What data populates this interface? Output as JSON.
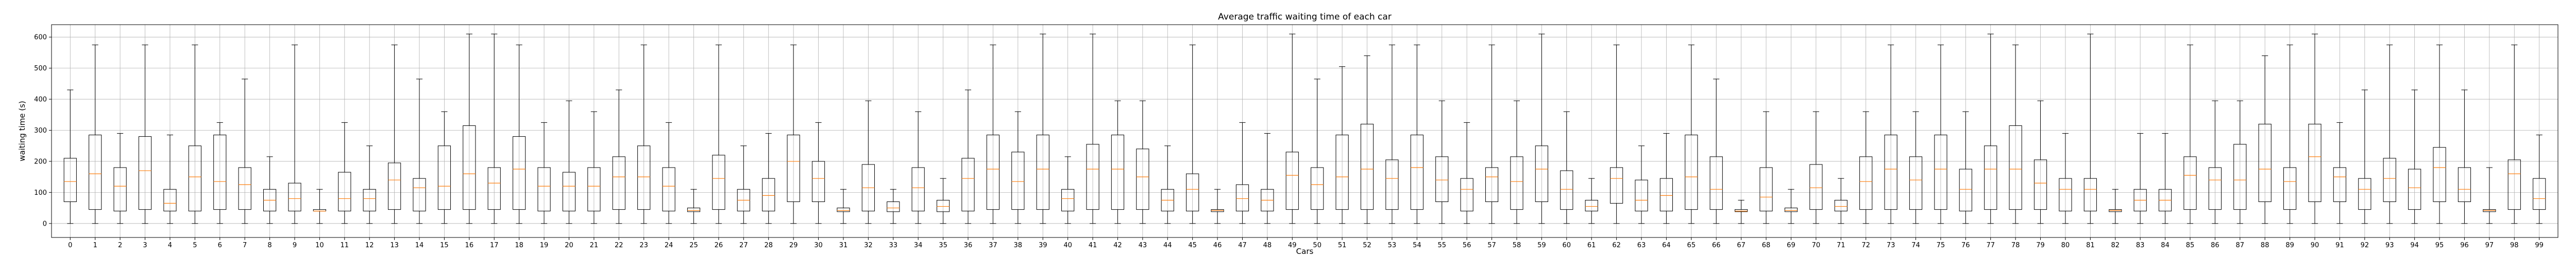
{
  "chart_data": {
    "type": "boxplot",
    "title": "Average traffic waiting time of each car",
    "xlabel": "Cars",
    "ylabel": "waiting time (s)",
    "ylim": [
      -45,
      640
    ],
    "yticks": [
      0,
      100,
      200,
      300,
      400,
      500,
      600
    ],
    "grid": true,
    "colors": {
      "box": "#000000",
      "median": "#ff7f0e",
      "grid": "#b0b0b0"
    },
    "categories": [
      "0",
      "1",
      "2",
      "3",
      "4",
      "5",
      "6",
      "7",
      "8",
      "9",
      "10",
      "11",
      "12",
      "13",
      "14",
      "15",
      "16",
      "17",
      "18",
      "19",
      "20",
      "21",
      "22",
      "23",
      "24",
      "25",
      "26",
      "27",
      "28",
      "29",
      "30",
      "31",
      "32",
      "33",
      "34",
      "35",
      "36",
      "37",
      "38",
      "39",
      "40",
      "41",
      "42",
      "43",
      "44",
      "45",
      "46",
      "47",
      "48",
      "49",
      "50",
      "51",
      "52",
      "53",
      "54",
      "55",
      "56",
      "57",
      "58",
      "59",
      "60",
      "61",
      "62",
      "63",
      "64",
      "65",
      "66",
      "67",
      "68",
      "69",
      "70",
      "71",
      "72",
      "73",
      "74",
      "75",
      "76",
      "77",
      "78",
      "79",
      "80",
      "81",
      "82",
      "83",
      "84",
      "85",
      "86",
      "87",
      "88",
      "89",
      "90",
      "91",
      "92",
      "93",
      "94",
      "95",
      "96",
      "97",
      "98",
      "99"
    ],
    "boxes": [
      {
        "whislo": 0,
        "q1": 70,
        "med": 135,
        "q3": 210,
        "whishi": 430
      },
      {
        "whislo": 0,
        "q1": 45,
        "med": 160,
        "q3": 285,
        "whishi": 575
      },
      {
        "whislo": 0,
        "q1": 40,
        "med": 120,
        "q3": 180,
        "whishi": 290
      },
      {
        "whislo": 0,
        "q1": 45,
        "med": 170,
        "q3": 280,
        "whishi": 575
      },
      {
        "whislo": 0,
        "q1": 40,
        "med": 65,
        "q3": 110,
        "whishi": 285
      },
      {
        "whislo": 0,
        "q1": 40,
        "med": 150,
        "q3": 250,
        "whishi": 575
      },
      {
        "whislo": 0,
        "q1": 45,
        "med": 135,
        "q3": 285,
        "whishi": 325
      },
      {
        "whislo": 0,
        "q1": 45,
        "med": 125,
        "q3": 180,
        "whishi": 465
      },
      {
        "whislo": 0,
        "q1": 40,
        "med": 75,
        "q3": 110,
        "whishi": 215
      },
      {
        "whislo": 0,
        "q1": 40,
        "med": 80,
        "q3": 130,
        "whishi": 575
      },
      {
        "whislo": 0,
        "q1": 40,
        "med": 40,
        "q3": 45,
        "whishi": 110
      },
      {
        "whislo": 0,
        "q1": 40,
        "med": 80,
        "q3": 165,
        "whishi": 325
      },
      {
        "whislo": 0,
        "q1": 40,
        "med": 80,
        "q3": 110,
        "whishi": 250
      },
      {
        "whislo": 0,
        "q1": 45,
        "med": 140,
        "q3": 195,
        "whishi": 575
      },
      {
        "whislo": 0,
        "q1": 40,
        "med": 115,
        "q3": 145,
        "whishi": 465
      },
      {
        "whislo": 0,
        "q1": 45,
        "med": 120,
        "q3": 250,
        "whishi": 360
      },
      {
        "whislo": 0,
        "q1": 45,
        "med": 160,
        "q3": 315,
        "whishi": 610
      },
      {
        "whislo": 0,
        "q1": 45,
        "med": 130,
        "q3": 180,
        "whishi": 610
      },
      {
        "whislo": 0,
        "q1": 45,
        "med": 175,
        "q3": 280,
        "whishi": 575
      },
      {
        "whislo": 0,
        "q1": 40,
        "med": 120,
        "q3": 180,
        "whishi": 325
      },
      {
        "whislo": 0,
        "q1": 40,
        "med": 120,
        "q3": 165,
        "whishi": 395
      },
      {
        "whislo": 0,
        "q1": 40,
        "med": 120,
        "q3": 180,
        "whishi": 360
      },
      {
        "whislo": 0,
        "q1": 45,
        "med": 150,
        "q3": 215,
        "whishi": 430
      },
      {
        "whislo": 0,
        "q1": 45,
        "med": 150,
        "q3": 250,
        "whishi": 575
      },
      {
        "whislo": 0,
        "q1": 40,
        "med": 120,
        "q3": 180,
        "whishi": 325
      },
      {
        "whislo": 0,
        "q1": 38,
        "med": 42,
        "q3": 50,
        "whishi": 110
      },
      {
        "whislo": 0,
        "q1": 45,
        "med": 145,
        "q3": 220,
        "whishi": 575
      },
      {
        "whislo": 0,
        "q1": 40,
        "med": 75,
        "q3": 110,
        "whishi": 250
      },
      {
        "whislo": 0,
        "q1": 40,
        "med": 90,
        "q3": 145,
        "whishi": 290
      },
      {
        "whislo": 0,
        "q1": 70,
        "med": 200,
        "q3": 285,
        "whishi": 575
      },
      {
        "whislo": 0,
        "q1": 70,
        "med": 145,
        "q3": 200,
        "whishi": 325
      },
      {
        "whislo": 0,
        "q1": 38,
        "med": 42,
        "q3": 50,
        "whishi": 110
      },
      {
        "whislo": 0,
        "q1": 40,
        "med": 115,
        "q3": 190,
        "whishi": 395
      },
      {
        "whislo": 0,
        "q1": 38,
        "med": 50,
        "q3": 70,
        "whishi": 110
      },
      {
        "whislo": 0,
        "q1": 40,
        "med": 115,
        "q3": 180,
        "whishi": 360
      },
      {
        "whislo": 0,
        "q1": 38,
        "med": 55,
        "q3": 75,
        "whishi": 145
      },
      {
        "whislo": 0,
        "q1": 40,
        "med": 145,
        "q3": 210,
        "whishi": 430
      },
      {
        "whislo": 0,
        "q1": 45,
        "med": 175,
        "q3": 285,
        "whishi": 575
      },
      {
        "whislo": 0,
        "q1": 45,
        "med": 135,
        "q3": 230,
        "whishi": 360
      },
      {
        "whislo": 0,
        "q1": 45,
        "med": 175,
        "q3": 285,
        "whishi": 610
      },
      {
        "whislo": 0,
        "q1": 40,
        "med": 80,
        "q3": 110,
        "whishi": 215
      },
      {
        "whislo": 0,
        "q1": 45,
        "med": 175,
        "q3": 255,
        "whishi": 610
      },
      {
        "whislo": 0,
        "q1": 45,
        "med": 175,
        "q3": 285,
        "whishi": 395
      },
      {
        "whislo": 0,
        "q1": 45,
        "med": 150,
        "q3": 240,
        "whishi": 395
      },
      {
        "whislo": 0,
        "q1": 40,
        "med": 75,
        "q3": 110,
        "whishi": 250
      },
      {
        "whislo": 0,
        "q1": 40,
        "med": 110,
        "q3": 160,
        "whishi": 575
      },
      {
        "whislo": 0,
        "q1": 38,
        "med": 42,
        "q3": 45,
        "whishi": 110
      },
      {
        "whislo": 0,
        "q1": 40,
        "med": 80,
        "q3": 125,
        "whishi": 325
      },
      {
        "whislo": 0,
        "q1": 40,
        "med": 75,
        "q3": 110,
        "whishi": 290
      },
      {
        "whislo": 0,
        "q1": 45,
        "med": 155,
        "q3": 230,
        "whishi": 610
      },
      {
        "whislo": 0,
        "q1": 45,
        "med": 125,
        "q3": 180,
        "whishi": 465
      },
      {
        "whislo": 0,
        "q1": 45,
        "med": 150,
        "q3": 285,
        "whishi": 505
      },
      {
        "whislo": 0,
        "q1": 45,
        "med": 175,
        "q3": 320,
        "whishi": 540
      },
      {
        "whislo": 0,
        "q1": 45,
        "med": 145,
        "q3": 205,
        "whishi": 575
      },
      {
        "whislo": 0,
        "q1": 45,
        "med": 180,
        "q3": 285,
        "whishi": 575
      },
      {
        "whislo": 0,
        "q1": 70,
        "med": 140,
        "q3": 215,
        "whishi": 395
      },
      {
        "whislo": 0,
        "q1": 40,
        "med": 110,
        "q3": 145,
        "whishi": 325
      },
      {
        "whislo": 0,
        "q1": 70,
        "med": 150,
        "q3": 180,
        "whishi": 575
      },
      {
        "whislo": 0,
        "q1": 45,
        "med": 135,
        "q3": 215,
        "whishi": 395
      },
      {
        "whislo": 0,
        "q1": 70,
        "med": 175,
        "q3": 250,
        "whishi": 610
      },
      {
        "whislo": 0,
        "q1": 45,
        "med": 110,
        "q3": 170,
        "whishi": 360
      },
      {
        "whislo": 0,
        "q1": 40,
        "med": 55,
        "q3": 75,
        "whishi": 145
      },
      {
        "whislo": 0,
        "q1": 65,
        "med": 145,
        "q3": 180,
        "whishi": 575
      },
      {
        "whislo": 0,
        "q1": 40,
        "med": 75,
        "q3": 140,
        "whishi": 250
      },
      {
        "whislo": 0,
        "q1": 40,
        "med": 90,
        "q3": 145,
        "whishi": 290
      },
      {
        "whislo": 0,
        "q1": 45,
        "med": 150,
        "q3": 285,
        "whishi": 575
      },
      {
        "whislo": 0,
        "q1": 45,
        "med": 110,
        "q3": 215,
        "whishi": 465
      },
      {
        "whislo": 0,
        "q1": 38,
        "med": 40,
        "q3": 45,
        "whishi": 75
      },
      {
        "whislo": 0,
        "q1": 40,
        "med": 85,
        "q3": 180,
        "whishi": 360
      },
      {
        "whislo": 0,
        "q1": 38,
        "med": 42,
        "q3": 50,
        "whishi": 110
      },
      {
        "whislo": 0,
        "q1": 45,
        "med": 115,
        "q3": 190,
        "whishi": 360
      },
      {
        "whislo": 0,
        "q1": 40,
        "med": 55,
        "q3": 75,
        "whishi": 145
      },
      {
        "whislo": 0,
        "q1": 45,
        "med": 135,
        "q3": 215,
        "whishi": 360
      },
      {
        "whislo": 0,
        "q1": 45,
        "med": 175,
        "q3": 285,
        "whishi": 575
      },
      {
        "whislo": 0,
        "q1": 45,
        "med": 140,
        "q3": 215,
        "whishi": 360
      },
      {
        "whislo": 0,
        "q1": 45,
        "med": 175,
        "q3": 285,
        "whishi": 575
      },
      {
        "whislo": 0,
        "q1": 40,
        "med": 110,
        "q3": 175,
        "whishi": 360
      },
      {
        "whislo": 0,
        "q1": 45,
        "med": 175,
        "q3": 250,
        "whishi": 610
      },
      {
        "whislo": 0,
        "q1": 45,
        "med": 175,
        "q3": 315,
        "whishi": 575
      },
      {
        "whislo": 0,
        "q1": 45,
        "med": 130,
        "q3": 205,
        "whishi": 395
      },
      {
        "whislo": 0,
        "q1": 40,
        "med": 110,
        "q3": 145,
        "whishi": 290
      },
      {
        "whislo": 0,
        "q1": 40,
        "med": 110,
        "q3": 145,
        "whishi": 610
      },
      {
        "whislo": 0,
        "q1": 38,
        "med": 42,
        "q3": 45,
        "whishi": 110
      },
      {
        "whislo": 0,
        "q1": 40,
        "med": 75,
        "q3": 110,
        "whishi": 290
      },
      {
        "whislo": 0,
        "q1": 40,
        "med": 75,
        "q3": 110,
        "whishi": 290
      },
      {
        "whislo": 0,
        "q1": 45,
        "med": 155,
        "q3": 215,
        "whishi": 575
      },
      {
        "whislo": 0,
        "q1": 45,
        "med": 140,
        "q3": 180,
        "whishi": 395
      },
      {
        "whislo": 0,
        "q1": 45,
        "med": 140,
        "q3": 255,
        "whishi": 395
      },
      {
        "whislo": 0,
        "q1": 70,
        "med": 175,
        "q3": 320,
        "whishi": 540
      },
      {
        "whislo": 0,
        "q1": 45,
        "med": 135,
        "q3": 180,
        "whishi": 575
      },
      {
        "whislo": 0,
        "q1": 70,
        "med": 215,
        "q3": 320,
        "whishi": 610
      },
      {
        "whislo": 0,
        "q1": 70,
        "med": 150,
        "q3": 180,
        "whishi": 325
      },
      {
        "whislo": 0,
        "q1": 45,
        "med": 110,
        "q3": 145,
        "whishi": 430
      },
      {
        "whislo": 0,
        "q1": 70,
        "med": 145,
        "q3": 210,
        "whishi": 575
      },
      {
        "whislo": 0,
        "q1": 45,
        "med": 115,
        "q3": 175,
        "whishi": 430
      },
      {
        "whislo": 0,
        "q1": 70,
        "med": 180,
        "q3": 245,
        "whishi": 575
      },
      {
        "whislo": 0,
        "q1": 70,
        "med": 110,
        "q3": 180,
        "whishi": 430
      },
      {
        "whislo": 0,
        "q1": 38,
        "med": 42,
        "q3": 45,
        "whishi": 180
      },
      {
        "whislo": 0,
        "q1": 45,
        "med": 160,
        "q3": 205,
        "whishi": 575
      },
      {
        "whislo": 0,
        "q1": 45,
        "med": 80,
        "q3": 145,
        "whishi": 285
      }
    ]
  }
}
